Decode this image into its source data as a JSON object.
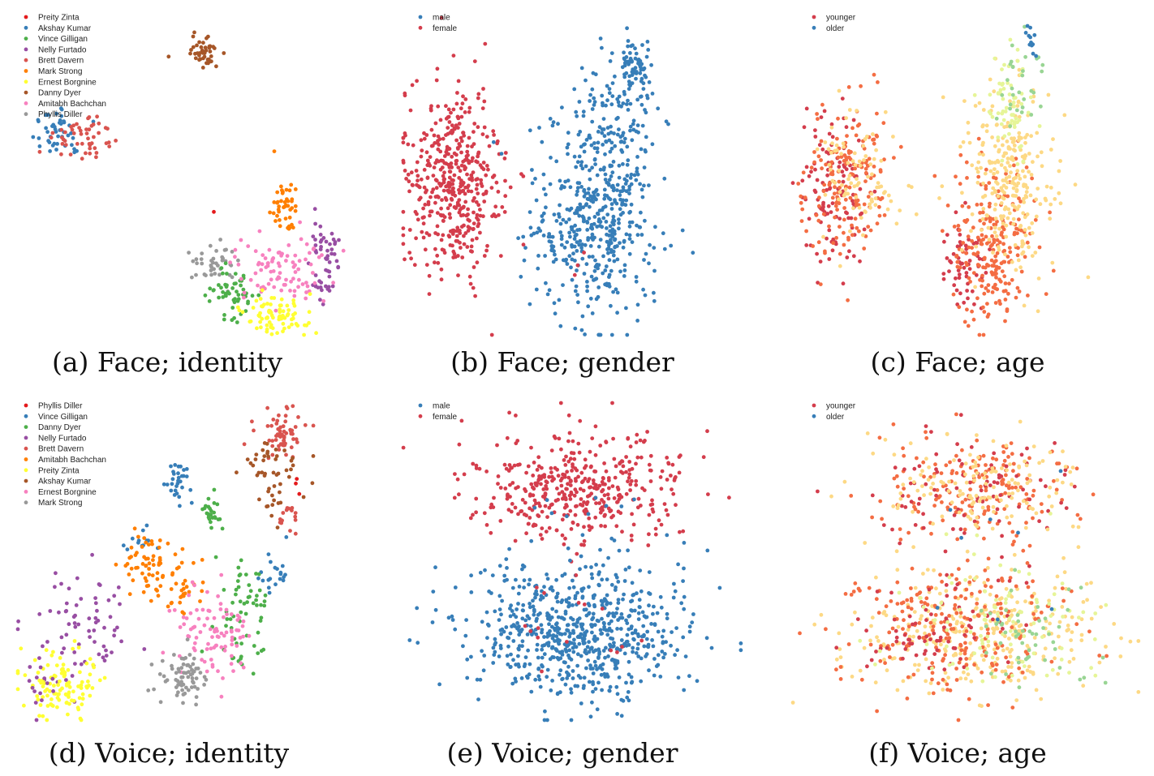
{
  "figure": {
    "panels": [
      {
        "caption": "(a) Face; identity",
        "chart_data": {
          "type": "scatter",
          "legend": "top-left",
          "legend_entries": [
            {
              "label": "Preity Zinta",
              "color": "#e41a1c"
            },
            {
              "label": "Akshay Kumar",
              "color": "#377eb8"
            },
            {
              "label": "Vince Gilligan",
              "color": "#4daf4a"
            },
            {
              "label": "Nelly Furtado",
              "color": "#984ea3"
            },
            {
              "label": "Brett Davern",
              "color": "#d9544f"
            },
            {
              "label": "Mark Strong",
              "color": "#ff7f00"
            },
            {
              "label": "Ernest Borgnine",
              "color": "#ffff33"
            },
            {
              "label": "Danny Dyer",
              "color": "#a65628"
            },
            {
              "label": "Amitabh Bachchan",
              "color": "#f781bf"
            },
            {
              "label": "Phyllis Diller",
              "color": "#999999"
            }
          ],
          "clusters": [
            {
              "color": "#377eb8",
              "x": 0.12,
              "y": 0.36,
              "sx": 0.045,
              "sy": 0.05,
              "n": 45
            },
            {
              "color": "#d9544f",
              "x": 0.2,
              "y": 0.38,
              "sx": 0.06,
              "sy": 0.045,
              "n": 50
            },
            {
              "color": "#a65628",
              "x": 0.55,
              "y": 0.11,
              "sx": 0.03,
              "sy": 0.04,
              "n": 45
            },
            {
              "color": "#ff7f00",
              "x": 0.79,
              "y": 0.6,
              "sx": 0.025,
              "sy": 0.05,
              "n": 45
            },
            {
              "color": "#984ea3",
              "x": 0.91,
              "y": 0.72,
              "sx": 0.025,
              "sy": 0.06,
              "n": 40
            },
            {
              "color": "#984ea3",
              "x": 0.89,
              "y": 0.85,
              "sx": 0.02,
              "sy": 0.025,
              "n": 15
            },
            {
              "color": "#999999",
              "x": 0.58,
              "y": 0.77,
              "sx": 0.035,
              "sy": 0.045,
              "n": 40
            },
            {
              "color": "#4daf4a",
              "x": 0.64,
              "y": 0.87,
              "sx": 0.04,
              "sy": 0.05,
              "n": 55
            },
            {
              "color": "#f781bf",
              "x": 0.77,
              "y": 0.79,
              "sx": 0.08,
              "sy": 0.06,
              "n": 90
            },
            {
              "color": "#ffff33",
              "x": 0.77,
              "y": 0.93,
              "sx": 0.06,
              "sy": 0.035,
              "n": 80
            },
            {
              "color": "#e41a1c",
              "x": 0.58,
              "y": 0.6,
              "sx": 0.01,
              "sy": 0.01,
              "n": 1
            }
          ]
        }
      },
      {
        "caption": "(b) Face; gender",
        "chart_data": {
          "type": "scatter",
          "legend": "top-left",
          "legend_entries": [
            {
              "label": "male",
              "color": "#377eb8"
            },
            {
              "label": "female",
              "color": "#d43d4c"
            }
          ],
          "clusters": [
            {
              "color": "#d43d4c",
              "x": 0.17,
              "y": 0.52,
              "sx": 0.09,
              "sy": 0.17,
              "n": 450
            },
            {
              "color": "#377eb8",
              "x": 0.7,
              "y": 0.36,
              "sx": 0.09,
              "sy": 0.16,
              "n": 180
            },
            {
              "color": "#377eb8",
              "x": 0.63,
              "y": 0.68,
              "sx": 0.12,
              "sy": 0.16,
              "n": 400
            },
            {
              "color": "#377eb8",
              "x": 0.77,
              "y": 0.15,
              "sx": 0.03,
              "sy": 0.05,
              "n": 60
            },
            {
              "color": "#d43d4c",
              "x": 0.58,
              "y": 0.75,
              "sx": 0.04,
              "sy": 0.05,
              "n": 3
            }
          ]
        }
      },
      {
        "caption": "(c) Face; age",
        "chart_data": {
          "type": "scatter",
          "legend": "top-left",
          "legend_entries": [
            {
              "label": "younger",
              "color": "#d43d4c"
            },
            {
              "label": "older",
              "color": "#377eb8"
            }
          ],
          "clusters": [
            {
              "color": "#d43d4c",
              "x": 0.13,
              "y": 0.55,
              "sx": 0.06,
              "sy": 0.14,
              "n": 120
            },
            {
              "color": "#f46d43",
              "x": 0.17,
              "y": 0.52,
              "sx": 0.08,
              "sy": 0.15,
              "n": 160
            },
            {
              "color": "#fdd985",
              "x": 0.22,
              "y": 0.5,
              "sx": 0.07,
              "sy": 0.12,
              "n": 90
            },
            {
              "color": "#d43d4c",
              "x": 0.54,
              "y": 0.78,
              "sx": 0.04,
              "sy": 0.08,
              "n": 60
            },
            {
              "color": "#f46d43",
              "x": 0.63,
              "y": 0.72,
              "sx": 0.08,
              "sy": 0.15,
              "n": 220
            },
            {
              "color": "#fdd985",
              "x": 0.68,
              "y": 0.5,
              "sx": 0.08,
              "sy": 0.17,
              "n": 260
            },
            {
              "color": "#e6f598",
              "x": 0.68,
              "y": 0.28,
              "sx": 0.05,
              "sy": 0.1,
              "n": 60
            },
            {
              "color": "#99d594",
              "x": 0.71,
              "y": 0.2,
              "sx": 0.04,
              "sy": 0.08,
              "n": 30
            },
            {
              "color": "#377eb8",
              "x": 0.75,
              "y": 0.1,
              "sx": 0.015,
              "sy": 0.04,
              "n": 12
            }
          ]
        }
      },
      {
        "caption": "(d) Voice; identity",
        "chart_data": {
          "type": "scatter",
          "legend": "top-left",
          "legend_entries": [
            {
              "label": "Phyllis Diller",
              "color": "#e41a1c"
            },
            {
              "label": "Vince Gilligan",
              "color": "#377eb8"
            },
            {
              "label": "Danny Dyer",
              "color": "#4daf4a"
            },
            {
              "label": "Nelly Furtado",
              "color": "#984ea3"
            },
            {
              "label": "Brett Davern",
              "color": "#d9544f"
            },
            {
              "label": "Amitabh Bachchan",
              "color": "#ff7f00"
            },
            {
              "label": "Preity Zinta",
              "color": "#ffff33"
            },
            {
              "label": "Akshay Kumar",
              "color": "#a65628"
            },
            {
              "label": "Ernest Borgnine",
              "color": "#f781bf"
            },
            {
              "label": "Mark Strong",
              "color": "#999999"
            }
          ],
          "clusters": [
            {
              "color": "#d9544f",
              "x": 0.82,
              "y": 0.1,
              "sx": 0.05,
              "sy": 0.05,
              "n": 60
            },
            {
              "color": "#a65628",
              "x": 0.79,
              "y": 0.22,
              "sx": 0.06,
              "sy": 0.08,
              "n": 50
            },
            {
              "color": "#d9544f",
              "x": 0.84,
              "y": 0.36,
              "sx": 0.03,
              "sy": 0.03,
              "n": 15
            },
            {
              "color": "#377eb8",
              "x": 0.5,
              "y": 0.25,
              "sx": 0.025,
              "sy": 0.035,
              "n": 30
            },
            {
              "color": "#4daf4a",
              "x": 0.6,
              "y": 0.34,
              "sx": 0.02,
              "sy": 0.035,
              "n": 25
            },
            {
              "color": "#377eb8",
              "x": 0.38,
              "y": 0.44,
              "sx": 0.03,
              "sy": 0.02,
              "n": 12
            },
            {
              "color": "#ff7f00",
              "x": 0.4,
              "y": 0.51,
              "sx": 0.05,
              "sy": 0.05,
              "n": 60
            },
            {
              "color": "#ff7f00",
              "x": 0.52,
              "y": 0.58,
              "sx": 0.04,
              "sy": 0.05,
              "n": 30
            },
            {
              "color": "#377eb8",
              "x": 0.79,
              "y": 0.54,
              "sx": 0.03,
              "sy": 0.04,
              "n": 20
            },
            {
              "color": "#4daf4a",
              "x": 0.7,
              "y": 0.64,
              "sx": 0.05,
              "sy": 0.1,
              "n": 60
            },
            {
              "color": "#f781bf",
              "x": 0.61,
              "y": 0.72,
              "sx": 0.07,
              "sy": 0.08,
              "n": 90
            },
            {
              "color": "#999999",
              "x": 0.52,
              "y": 0.86,
              "sx": 0.045,
              "sy": 0.04,
              "n": 70
            },
            {
              "color": "#984ea3",
              "x": 0.2,
              "y": 0.7,
              "sx": 0.1,
              "sy": 0.1,
              "n": 70
            },
            {
              "color": "#ffff33",
              "x": 0.14,
              "y": 0.89,
              "sx": 0.06,
              "sy": 0.06,
              "n": 110
            },
            {
              "color": "#984ea3",
              "x": 0.07,
              "y": 0.9,
              "sx": 0.03,
              "sy": 0.05,
              "n": 15
            },
            {
              "color": "#e41a1c",
              "x": 0.88,
              "y": 0.28,
              "sx": 0.02,
              "sy": 0.03,
              "n": 3
            }
          ]
        }
      },
      {
        "caption": "(e) Voice; gender",
        "chart_data": {
          "type": "scatter",
          "legend": "top-left",
          "legend_entries": [
            {
              "label": "male",
              "color": "#377eb8"
            },
            {
              "label": "female",
              "color": "#d43d4c"
            }
          ],
          "clusters": [
            {
              "color": "#d43d4c",
              "x": 0.52,
              "y": 0.27,
              "sx": 0.17,
              "sy": 0.1,
              "n": 420
            },
            {
              "color": "#377eb8",
              "x": 0.52,
              "y": 0.72,
              "sx": 0.19,
              "sy": 0.12,
              "n": 700
            },
            {
              "color": "#377eb8",
              "x": 0.52,
              "y": 0.35,
              "sx": 0.12,
              "sy": 0.05,
              "n": 10
            },
            {
              "color": "#d43d4c",
              "x": 0.52,
              "y": 0.68,
              "sx": 0.12,
              "sy": 0.1,
              "n": 18
            }
          ]
        }
      },
      {
        "caption": "(f) Voice; age",
        "chart_data": {
          "type": "scatter",
          "legend": "top-left",
          "legend_entries": [
            {
              "label": "younger",
              "color": "#d43d4c"
            },
            {
              "label": "older",
              "color": "#377eb8"
            }
          ],
          "clusters": [
            {
              "color": "#f46d43",
              "x": 0.53,
              "y": 0.27,
              "sx": 0.16,
              "sy": 0.1,
              "n": 170
            },
            {
              "color": "#d43d4c",
              "x": 0.5,
              "y": 0.28,
              "sx": 0.16,
              "sy": 0.1,
              "n": 90
            },
            {
              "color": "#fdd985",
              "x": 0.55,
              "y": 0.27,
              "sx": 0.16,
              "sy": 0.1,
              "n": 140
            },
            {
              "color": "#fdd985",
              "x": 0.55,
              "y": 0.72,
              "sx": 0.2,
              "sy": 0.12,
              "n": 320
            },
            {
              "color": "#f46d43",
              "x": 0.45,
              "y": 0.72,
              "sx": 0.18,
              "sy": 0.12,
              "n": 220
            },
            {
              "color": "#d43d4c",
              "x": 0.4,
              "y": 0.71,
              "sx": 0.15,
              "sy": 0.1,
              "n": 80
            },
            {
              "color": "#e6f598",
              "x": 0.6,
              "y": 0.7,
              "sx": 0.17,
              "sy": 0.12,
              "n": 90
            },
            {
              "color": "#99d594",
              "x": 0.68,
              "y": 0.73,
              "sx": 0.12,
              "sy": 0.1,
              "n": 50
            },
            {
              "color": "#377eb8",
              "x": 0.62,
              "y": 0.5,
              "sx": 0.15,
              "sy": 0.15,
              "n": 8
            }
          ]
        }
      }
    ]
  }
}
